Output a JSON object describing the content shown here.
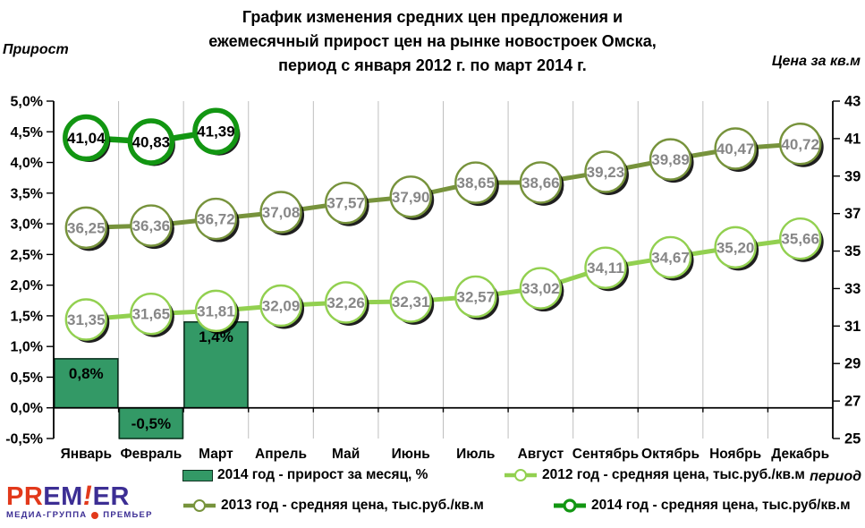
{
  "header": {
    "title": "График изменения средних цен предложения и\nежемесячный прирост цен на рынке новостроек  Омска,\nпериод с января 2012 г. по март 2014 г."
  },
  "logo": {
    "part1": "PR",
    "part2": "EM",
    "exclaim": "!",
    "part3": "ER",
    "subtitle_left": "МЕДИА-ГРУППА",
    "subtitle_right": "ПРЕМЬЕР",
    "red": "#e2391b",
    "purple": "#3c2e94"
  },
  "chart_data": {
    "type": "bar",
    "subtype": "combo-bar-line",
    "categories": [
      "Январь",
      "Февраль",
      "Март",
      "Апрель",
      "Май",
      "Июнь",
      "Июль",
      "Август",
      "Сентябрь",
      "Октябрь",
      "Ноябрь",
      "Декабрь"
    ],
    "x_axis": {
      "title": "период"
    },
    "left_axis": {
      "title": "Прирост",
      "min": -0.5,
      "max": 5.0,
      "step": 0.5,
      "tick_labels": [
        "5,0%",
        "4,5%",
        "4,0%",
        "3,5%",
        "3,0%",
        "2,5%",
        "2,0%",
        "1,5%",
        "1,0%",
        "0,5%",
        "0,0%",
        "-0,5%"
      ]
    },
    "right_axis": {
      "title": "Цена за кв.м",
      "min": 25,
      "max": 43,
      "step": 2,
      "tick_labels": [
        "43",
        "41",
        "39",
        "37",
        "35",
        "33",
        "31",
        "29",
        "27",
        "25"
      ]
    },
    "grid": "vertical-only",
    "legend_position": "bottom",
    "bar_series": {
      "name": "2014 год - прирост за месяц, %",
      "values": [
        0.8,
        -0.5,
        1.4
      ],
      "labels": [
        "0,8%",
        "-0,5%",
        "1,4%"
      ],
      "color": "#339966",
      "border": "#0d3320"
    },
    "line_series": [
      {
        "name": "2012 год - средняя цена, тыс.руб./кв.м",
        "color": "#92d050",
        "label_color": "#878787",
        "line_width": 5,
        "ring_width": 2.4,
        "radius": 22.5,
        "values": [
          31.35,
          31.65,
          31.81,
          32.09,
          32.26,
          32.31,
          32.57,
          33.02,
          34.11,
          34.67,
          35.2,
          35.66
        ],
        "labels": [
          "31,35",
          "31,65",
          "31,81",
          "32,09",
          "32,26",
          "32,31",
          "32,57",
          "33,02",
          "34,11",
          "34,67",
          "35,20",
          "35,66"
        ]
      },
      {
        "name": "2013 год - средняя цена, тыс.руб./кв.м",
        "color": "#77933c",
        "label_color": "#878787",
        "line_width": 5,
        "ring_width": 2.4,
        "radius": 22.5,
        "values": [
          36.25,
          36.36,
          36.72,
          37.08,
          37.57,
          37.9,
          38.65,
          38.66,
          39.23,
          39.89,
          40.47,
          40.72
        ],
        "labels": [
          "36,25",
          "36,36",
          "36,72",
          "37,08",
          "37,57",
          "37,90",
          "38,65",
          "38,66",
          "39,23",
          "39,89",
          "40,47",
          "40,72"
        ]
      },
      {
        "name": "2014 год - средняя цена, тыс.руб/кв.м",
        "color": "#129612",
        "label_color": "#000000",
        "line_width": 6.5,
        "ring_width": 5.5,
        "radius": 23.5,
        "values": [
          41.04,
          40.83,
          41.39
        ],
        "labels": [
          "41,04",
          "40,83",
          "41,39"
        ]
      }
    ]
  }
}
